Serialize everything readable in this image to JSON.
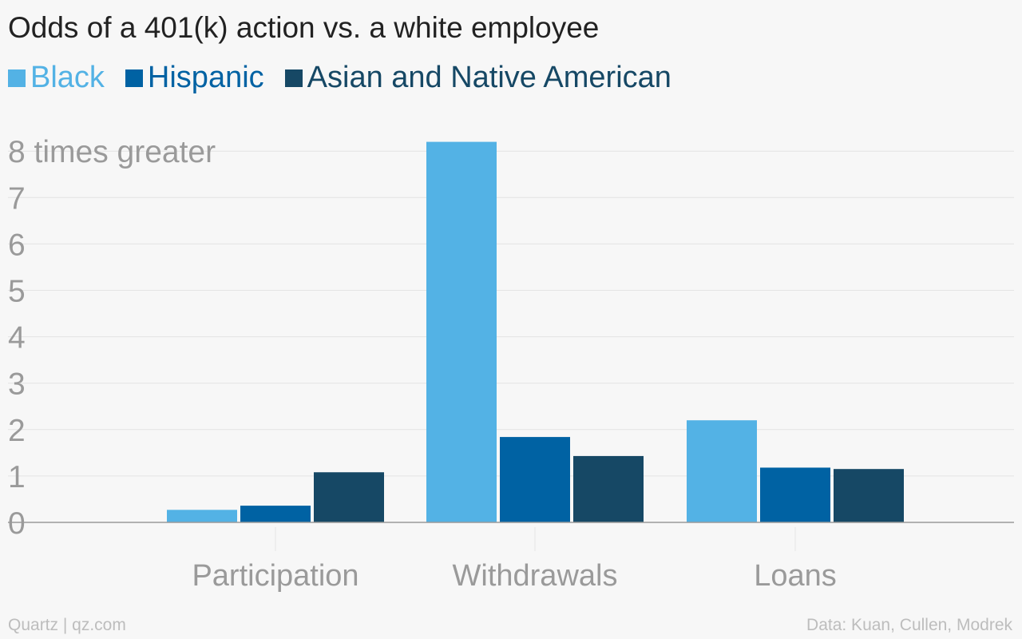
{
  "chart_data": {
    "type": "bar",
    "title": "Odds of a 401(k) action vs. a white employee",
    "categories": [
      "Participation",
      "Withdrawals",
      "Loans"
    ],
    "series": [
      {
        "name": "Black",
        "color": "#53b2e5",
        "values": [
          0.27,
          8.2,
          2.2
        ]
      },
      {
        "name": "Hispanic",
        "color": "#0062a3",
        "values": [
          0.36,
          1.84,
          1.18
        ]
      },
      {
        "name": "Asian and Native American",
        "color": "#164865",
        "values": [
          1.08,
          1.43,
          1.15
        ]
      }
    ],
    "ylim": [
      0,
      8
    ],
    "yticks": [
      0,
      1,
      2,
      3,
      4,
      5,
      6,
      7,
      8
    ],
    "ytick_labels": [
      "0",
      "1",
      "2",
      "3",
      "4",
      "5",
      "6",
      "7",
      "8 times greater"
    ],
    "grid": true,
    "legend_position": "top-left"
  },
  "footer": {
    "source_left": "Quartz | qz.com",
    "source_right": "Data: Kuan, Cullen, Modrek"
  }
}
